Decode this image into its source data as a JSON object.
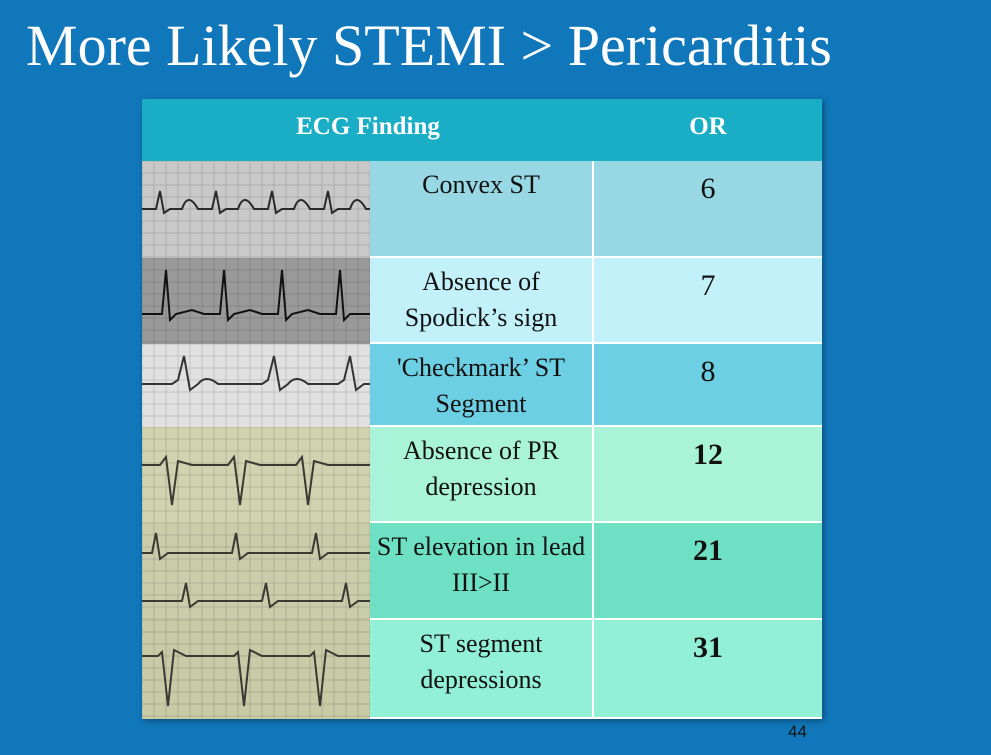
{
  "slide": {
    "title": "More Likely STEMI > Pericarditis",
    "page_number": "44"
  },
  "table": {
    "headers": [
      "ECG Finding",
      "OR"
    ],
    "rows": [
      {
        "finding": "Convex ST",
        "or": "6",
        "bold": false,
        "tone": "#97d8e4",
        "ecg_paper": "#c9c9c9",
        "ecg_trace": "#2a2a2a"
      },
      {
        "finding": "Absence of Spodick’s sign",
        "or": "7",
        "bold": false,
        "tone": "#c3f1fa",
        "ecg_paper": "#9a9a9a",
        "ecg_trace": "#111111"
      },
      {
        "finding": "'Checkmark’ ST Segment",
        "or": "8",
        "bold": false,
        "tone": "#6dcfe3",
        "ecg_paper": "#e1e1e1",
        "ecg_trace": "#333333"
      },
      {
        "finding": "Absence of PR depression",
        "or": "12",
        "bold": true,
        "tone": "#a9f3d8",
        "ecg_paper": "#cfd3b0",
        "ecg_trace": "#3a3a33"
      },
      {
        "finding": "ST elevation in lead III>II",
        "or": "21",
        "bold": true,
        "tone": "#6ee0c3",
        "ecg_paper": "#c9cdaa",
        "ecg_trace": "#3a3a33"
      },
      {
        "finding": "ST segment depressions",
        "or": "31",
        "bold": true,
        "tone": "#92f0d6",
        "ecg_paper": "#c7cba6",
        "ecg_trace": "#3a3a33"
      }
    ]
  }
}
